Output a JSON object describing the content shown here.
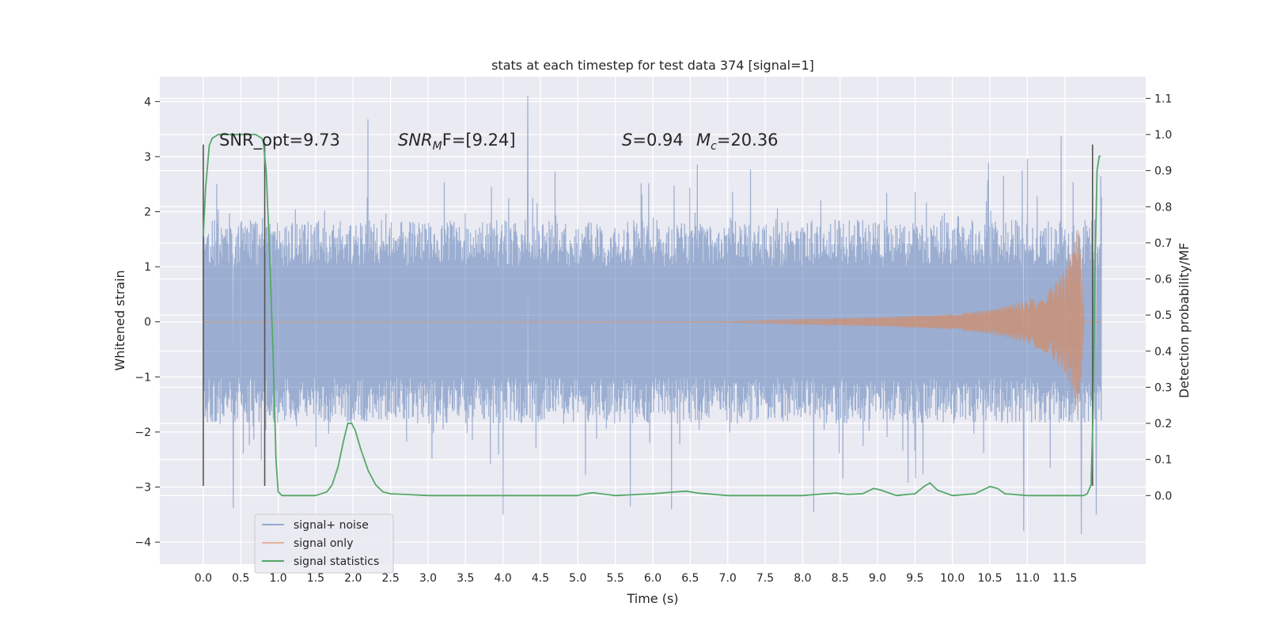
{
  "chart_data": {
    "type": "line",
    "title": "stats at each timestep for test data 374 [signal=1]",
    "xlabel": "Time (s)",
    "ylabel_left": "Whitened strain",
    "ylabel_right": "Detection probability/MF",
    "xlim": [
      -0.58,
      12.58
    ],
    "ylim_left": [
      -4.4,
      4.45
    ],
    "ylim_right": [
      -0.19,
      1.16
    ],
    "x_ticks": [
      0.0,
      0.5,
      1.0,
      1.5,
      2.0,
      2.5,
      3.0,
      3.5,
      4.0,
      4.5,
      5.0,
      5.5,
      6.0,
      6.5,
      7.0,
      7.5,
      8.0,
      8.5,
      9.0,
      9.5,
      10.0,
      10.5,
      11.0,
      11.5
    ],
    "x_tick_labels": [
      "0.0",
      "0.5",
      "1.0",
      "1.5",
      "2.0",
      "2.5",
      "3.0",
      "3.5",
      "4.0",
      "4.5",
      "5.0",
      "5.5",
      "6.0",
      "6.5",
      "7.0",
      "7.5",
      "8.0",
      "8.5",
      "9.0",
      "9.5",
      "10.0",
      "10.5",
      "11.0",
      "11.5"
    ],
    "y_left_ticks": [
      4,
      3,
      2,
      1,
      0,
      -1,
      -2,
      -3,
      -4
    ],
    "y_left_tick_labels": [
      "4",
      "3",
      "2",
      "1",
      "0",
      "−1",
      "−2",
      "−3",
      "−4"
    ],
    "y_right_ticks": [
      1.1,
      1.0,
      0.9,
      0.8,
      0.7,
      0.6,
      0.5,
      0.4,
      0.3,
      0.2,
      0.1,
      0.0
    ],
    "y_right_tick_labels": [
      "1.1",
      "1.0",
      "0.9",
      "0.8",
      "0.7",
      "0.6",
      "0.5",
      "0.4",
      "0.3",
      "0.2",
      "0.1",
      "0.0"
    ],
    "grid": true,
    "legend_position": "lower-left",
    "legend": [
      "signal+ noise",
      "signal only",
      "signal statistics"
    ],
    "annotations": {
      "snr_opt_label": "SNR_opt=9.73",
      "snr_mf_main": "SNR",
      "snr_mf_sub": "M",
      "snr_mf_rest": "F=[9.24]",
      "s_main": "S",
      "s_rest": "=0.94",
      "mc_main": "M",
      "mc_sub": "c",
      "mc_rest": "=20.36"
    },
    "colors": {
      "noise": "#4c72b0",
      "signal": "#dd8452",
      "stats": "#55a868",
      "background": "#eaeaf2",
      "grid": "#ffffff",
      "marker": "#555555"
    },
    "series": [
      {
        "name": "signal+ noise",
        "axis": "left",
        "x_range": [
          0.0,
          11.99
        ],
        "typical_envelope": [
          -1.85,
          1.85
        ],
        "peaks": [
          {
            "x": 0.4,
            "y": -3.38
          },
          {
            "x": 2.2,
            "y": 3.68
          },
          {
            "x": 4.0,
            "y": -3.5
          },
          {
            "x": 4.33,
            "y": 4.1
          },
          {
            "x": 5.7,
            "y": -3.35
          },
          {
            "x": 6.25,
            "y": -3.4
          },
          {
            "x": 8.15,
            "y": -3.45
          },
          {
            "x": 10.95,
            "y": -3.8
          },
          {
            "x": 11.45,
            "y": 3.38
          },
          {
            "x": 11.72,
            "y": -3.85
          },
          {
            "x": 11.92,
            "y": -3.5
          }
        ]
      },
      {
        "name": "signal only",
        "axis": "left",
        "x_range": [
          0.0,
          11.99
        ],
        "amplitude": [
          [
            0.0,
            0.0
          ],
          [
            7.0,
            0.01
          ],
          [
            8.0,
            0.05
          ],
          [
            9.0,
            0.08
          ],
          [
            10.0,
            0.14
          ],
          [
            10.5,
            0.22
          ],
          [
            11.0,
            0.38
          ],
          [
            11.3,
            0.6
          ],
          [
            11.5,
            0.95
          ],
          [
            11.6,
            1.3
          ],
          [
            11.65,
            1.55
          ],
          [
            11.68,
            1.75
          ],
          [
            11.72,
            1.1
          ],
          [
            11.76,
            0.0
          ]
        ]
      },
      {
        "name": "signal statistics",
        "axis": "right",
        "x": [
          0.0,
          0.03,
          0.08,
          0.12,
          0.2,
          0.3,
          0.45,
          0.6,
          0.7,
          0.78,
          0.8,
          0.84,
          0.88,
          0.93,
          0.97,
          1.0,
          1.05,
          1.1,
          1.5,
          1.65,
          1.72,
          1.8,
          1.87,
          1.93,
          1.98,
          2.03,
          2.1,
          2.2,
          2.3,
          2.4,
          2.5,
          2.7,
          3.0,
          4.0,
          5.0,
          5.1,
          5.2,
          5.3,
          5.5,
          6.0,
          6.3,
          6.45,
          6.6,
          7.0,
          8.0,
          8.3,
          8.45,
          8.6,
          8.8,
          8.95,
          9.05,
          9.25,
          9.5,
          9.62,
          9.7,
          9.8,
          10.0,
          10.3,
          10.5,
          10.6,
          10.7,
          11.0,
          11.5,
          11.75,
          11.8,
          11.85,
          11.88,
          11.9,
          11.93,
          11.96,
          11.98
        ],
        "y": [
          0.72,
          0.85,
          0.97,
          0.99,
          1.0,
          1.0,
          1.0,
          1.0,
          1.0,
          0.99,
          0.98,
          0.9,
          0.7,
          0.4,
          0.1,
          0.01,
          0.0,
          0.0,
          0.0,
          0.01,
          0.03,
          0.08,
          0.15,
          0.2,
          0.2,
          0.18,
          0.13,
          0.07,
          0.03,
          0.01,
          0.005,
          0.003,
          0.0,
          0.0,
          0.0,
          0.005,
          0.008,
          0.005,
          0.0,
          0.005,
          0.01,
          0.012,
          0.007,
          0.0,
          0.0,
          0.005,
          0.007,
          0.003,
          0.005,
          0.02,
          0.015,
          0.0,
          0.005,
          0.025,
          0.035,
          0.015,
          0.0,
          0.005,
          0.025,
          0.02,
          0.005,
          0.0,
          0.0,
          0.0,
          0.005,
          0.03,
          0.25,
          0.6,
          0.9,
          0.94,
          0.94
        ]
      }
    ],
    "vertical_markers": {
      "x": [
        0.0,
        0.82,
        11.87
      ],
      "y_range_left": [
        -2.98,
        3.22
      ]
    }
  }
}
